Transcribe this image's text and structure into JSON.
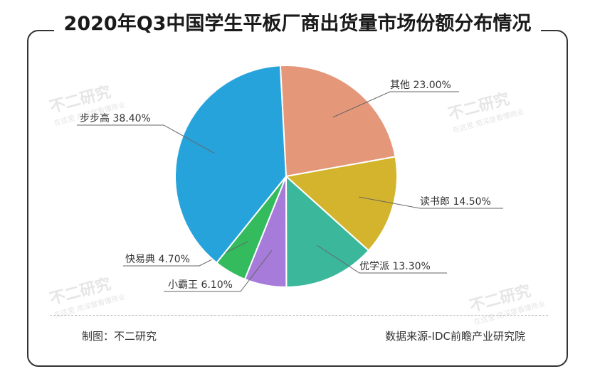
{
  "title": "2020年Q3中国学生平板厂商出货量市场份额分布情况",
  "footer": {
    "made_by": "制图：不二研究",
    "source": "数据来源-IDC前瞻产业研究院"
  },
  "watermark": {
    "main": "不二研究",
    "sub": "在这里 用深度看懂商业"
  },
  "chart_data": {
    "type": "pie",
    "title": "2020年Q3中国学生平板厂商出货量市场份额分布情况",
    "slices": [
      {
        "label": "其他",
        "value": 23.0,
        "display": "23.00%",
        "color": "#E5977A"
      },
      {
        "label": "读书郎",
        "value": 14.5,
        "display": "14.50%",
        "color": "#D4B42C"
      },
      {
        "label": "优学派",
        "value": 13.3,
        "display": "13.30%",
        "color": "#3BB89C"
      },
      {
        "label": "小霸王",
        "value": 6.1,
        "display": "6.10%",
        "color": "#A67BDA"
      },
      {
        "label": "快易典",
        "value": 4.7,
        "display": "4.70%",
        "color": "#33BB5E"
      },
      {
        "label": "步步高",
        "value": 38.4,
        "display": "38.40%",
        "color": "#27A3DC"
      }
    ],
    "start_angle_deg": -3,
    "direction": "clockwise"
  }
}
